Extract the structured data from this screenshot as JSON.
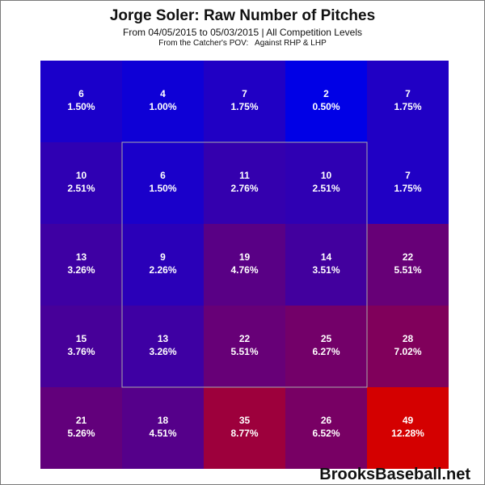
{
  "chart_data": {
    "type": "heatmap",
    "title": "Jorge Soler: Raw Number of Pitches",
    "subtitle": "From 04/05/2015 to 05/03/2015 | All Competition Levels",
    "subtitle2": "From the Catcher's POV:   Against RHP & LHP",
    "rows": 5,
    "cols": 5,
    "cells": [
      [
        {
          "count": "6",
          "pct": "1.50%"
        },
        {
          "count": "4",
          "pct": "1.00%"
        },
        {
          "count": "7",
          "pct": "1.75%"
        },
        {
          "count": "2",
          "pct": "0.50%"
        },
        {
          "count": "7",
          "pct": "1.75%"
        }
      ],
      [
        {
          "count": "10",
          "pct": "2.51%"
        },
        {
          "count": "6",
          "pct": "1.50%"
        },
        {
          "count": "11",
          "pct": "2.76%"
        },
        {
          "count": "10",
          "pct": "2.51%"
        },
        {
          "count": "7",
          "pct": "1.75%"
        }
      ],
      [
        {
          "count": "13",
          "pct": "3.26%"
        },
        {
          "count": "9",
          "pct": "2.26%"
        },
        {
          "count": "19",
          "pct": "4.76%"
        },
        {
          "count": "14",
          "pct": "3.51%"
        },
        {
          "count": "22",
          "pct": "5.51%"
        }
      ],
      [
        {
          "count": "15",
          "pct": "3.76%"
        },
        {
          "count": "13",
          "pct": "3.26%"
        },
        {
          "count": "22",
          "pct": "5.51%"
        },
        {
          "count": "25",
          "pct": "6.27%"
        },
        {
          "count": "28",
          "pct": "7.02%"
        }
      ],
      [
        {
          "count": "21",
          "pct": "5.26%"
        },
        {
          "count": "18",
          "pct": "4.51%"
        },
        {
          "count": "35",
          "pct": "8.77%"
        },
        {
          "count": "26",
          "pct": "6.52%"
        },
        {
          "count": "49",
          "pct": "12.28%"
        }
      ]
    ],
    "color_low": "#0000e6",
    "color_high": "#d40000",
    "strike_zone": {
      "row_start": 1,
      "row_end": 3,
      "col_start": 1,
      "col_end": 3
    },
    "strike_zone_color": "#aaaaaa",
    "text_color": "#ffffff"
  },
  "watermark": "BrooksBaseball.net"
}
